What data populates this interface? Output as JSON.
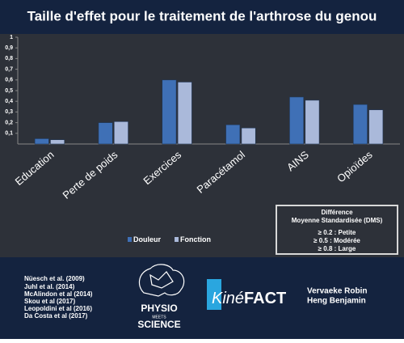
{
  "chart_data": {
    "type": "bar",
    "title": "Taille d'effet pour le traitement de l'arthrose du genou",
    "categories": [
      "Education",
      "Perte de poids",
      "Exercices",
      "Paracétamol",
      "AINS",
      "Opioïdes"
    ],
    "series": [
      {
        "name": "Douleur",
        "color": "#3f70b6",
        "values": [
          0.05,
          0.2,
          0.6,
          0.18,
          0.44,
          0.37
        ]
      },
      {
        "name": "Fonction",
        "color": "#aab9da",
        "values": [
          0.04,
          0.21,
          0.58,
          0.15,
          0.41,
          0.32
        ]
      }
    ],
    "ylim": [
      0,
      1
    ],
    "yticks": [
      {
        "value": 0.1,
        "label": "0,1"
      },
      {
        "value": 0.2,
        "label": "0,2"
      },
      {
        "value": 0.3,
        "label": "0,3"
      },
      {
        "value": 0.4,
        "label": "0,4"
      },
      {
        "value": 0.5,
        "label": "0,5"
      },
      {
        "value": 0.6,
        "label": "0,6"
      },
      {
        "value": 0.7,
        "label": "0,7"
      },
      {
        "value": 0.8,
        "label": "0,8"
      },
      {
        "value": 0.9,
        "label": "0,9"
      },
      1
    ],
    "legend": "bottom-left"
  },
  "dms_box": {
    "title": "Différence",
    "subtitle": "Moyenne Standardisée (DMS)",
    "lines": [
      "≥ 0.2 : Petite",
      "≥ 0.5 : Modérée",
      "≥ 0.8 : Large"
    ]
  },
  "footer": {
    "references": [
      "Nüesch et al. (2009)",
      "Juhl et al. (2014)",
      "McAlindon et al (2014)",
      "Skou et al (2017)",
      "Leopoldini et al (2016)",
      "Da Costa et al (2017)"
    ],
    "logo1": {
      "top": "PHYSIO",
      "middle": "MEETS",
      "bottom": "SCIENCE"
    },
    "logo2": {
      "prefix": "Kiné",
      "suffix": "FACT"
    },
    "authors": [
      "Vervaeke Robin",
      "Heng Benjamin"
    ]
  }
}
